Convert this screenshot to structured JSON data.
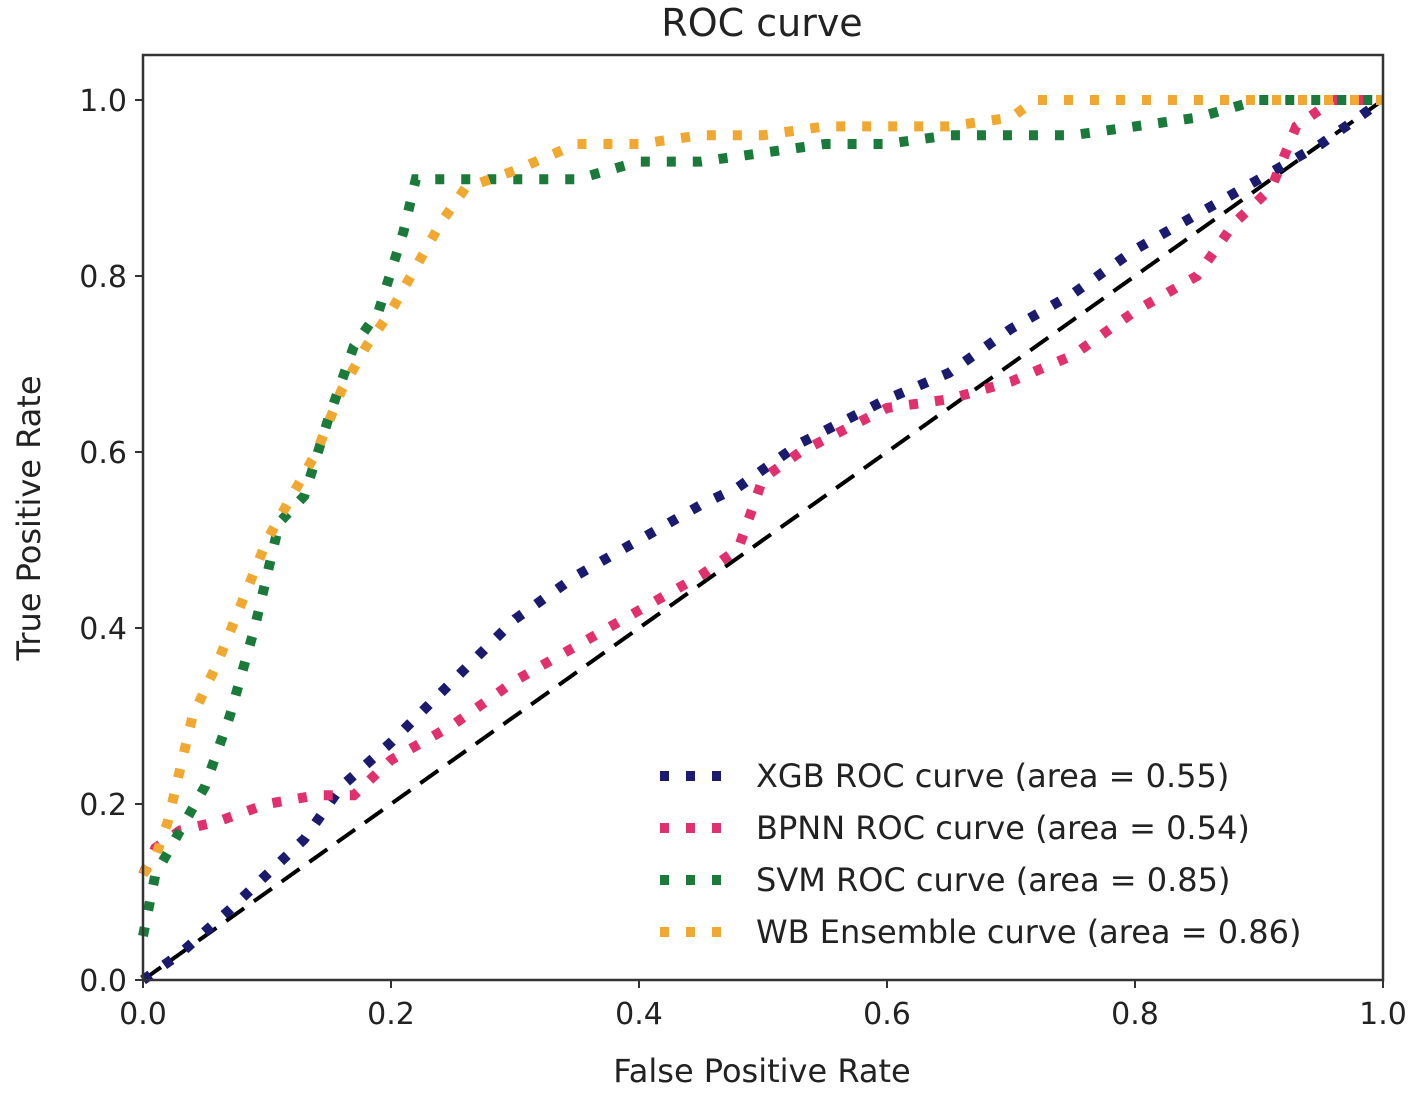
{
  "chart_data": {
    "type": "line",
    "title": "ROC curve",
    "xlabel": "False Positive Rate",
    "ylabel": "True Positive Rate",
    "xlim": [
      0.0,
      1.0
    ],
    "ylim": [
      0.0,
      1.0
    ],
    "xticks": [
      "0.0",
      "0.2",
      "0.4",
      "0.6",
      "0.8",
      "1.0"
    ],
    "yticks": [
      "0.0",
      "0.2",
      "0.4",
      "0.6",
      "0.8",
      "1.0"
    ],
    "grid": false,
    "legend_position": "lower right",
    "diagonal": {
      "x": [
        0,
        1
      ],
      "y": [
        0,
        1
      ],
      "color": "#000000",
      "style": "dashed"
    },
    "series": [
      {
        "name": "XGB ROC curve (area = 0.55)",
        "color": "#1a1a6e",
        "x": [
          0.0,
          0.03,
          0.07,
          0.1,
          0.13,
          0.16,
          0.2,
          0.25,
          0.3,
          0.35,
          0.4,
          0.45,
          0.48,
          0.5,
          0.53,
          0.6,
          0.65,
          0.7,
          0.75,
          0.8,
          0.85,
          0.9,
          0.95,
          1.0
        ],
        "y": [
          0.0,
          0.03,
          0.08,
          0.12,
          0.16,
          0.22,
          0.27,
          0.34,
          0.41,
          0.46,
          0.5,
          0.54,
          0.56,
          0.58,
          0.61,
          0.66,
          0.69,
          0.74,
          0.78,
          0.83,
          0.87,
          0.91,
          0.95,
          1.0
        ]
      },
      {
        "name": "BPNN ROC curve (area = 0.54)",
        "color": "#e0306e",
        "x": [
          0.0,
          0.01,
          0.03,
          0.06,
          0.1,
          0.14,
          0.17,
          0.2,
          0.25,
          0.3,
          0.35,
          0.4,
          0.45,
          0.48,
          0.5,
          0.53,
          0.6,
          0.65,
          0.7,
          0.75,
          0.8,
          0.85,
          0.88,
          0.91,
          0.93,
          0.96,
          1.0
        ],
        "y": [
          0.12,
          0.15,
          0.17,
          0.18,
          0.2,
          0.21,
          0.21,
          0.25,
          0.29,
          0.34,
          0.38,
          0.42,
          0.46,
          0.49,
          0.57,
          0.6,
          0.65,
          0.66,
          0.68,
          0.71,
          0.76,
          0.8,
          0.86,
          0.9,
          0.97,
          1.0,
          1.0
        ]
      },
      {
        "name": "SVM ROC curve (area = 0.85)",
        "color": "#1a7a3a",
        "x": [
          0.0,
          0.01,
          0.03,
          0.05,
          0.07,
          0.09,
          0.11,
          0.13,
          0.15,
          0.17,
          0.19,
          0.21,
          0.22,
          0.25,
          0.3,
          0.35,
          0.4,
          0.45,
          0.5,
          0.55,
          0.6,
          0.65,
          0.7,
          0.75,
          0.8,
          0.85,
          0.9,
          0.95,
          1.0
        ],
        "y": [
          0.05,
          0.12,
          0.17,
          0.22,
          0.3,
          0.4,
          0.52,
          0.55,
          0.64,
          0.72,
          0.76,
          0.85,
          0.91,
          0.91,
          0.91,
          0.91,
          0.93,
          0.93,
          0.94,
          0.95,
          0.95,
          0.96,
          0.96,
          0.96,
          0.97,
          0.98,
          1.0,
          1.0,
          1.0
        ]
      },
      {
        "name": "WB Ensemble curve (area = 0.86)",
        "color": "#f0a830",
        "x": [
          0.0,
          0.01,
          0.02,
          0.03,
          0.04,
          0.06,
          0.08,
          0.1,
          0.12,
          0.14,
          0.16,
          0.18,
          0.2,
          0.22,
          0.24,
          0.26,
          0.3,
          0.35,
          0.4,
          0.45,
          0.5,
          0.55,
          0.6,
          0.65,
          0.7,
          0.72,
          0.8,
          0.9,
          1.0
        ],
        "y": [
          0.12,
          0.14,
          0.18,
          0.24,
          0.3,
          0.36,
          0.43,
          0.5,
          0.55,
          0.6,
          0.67,
          0.72,
          0.76,
          0.81,
          0.86,
          0.9,
          0.92,
          0.95,
          0.95,
          0.96,
          0.96,
          0.97,
          0.97,
          0.97,
          0.98,
          1.0,
          1.0,
          1.0,
          1.0
        ]
      }
    ]
  }
}
